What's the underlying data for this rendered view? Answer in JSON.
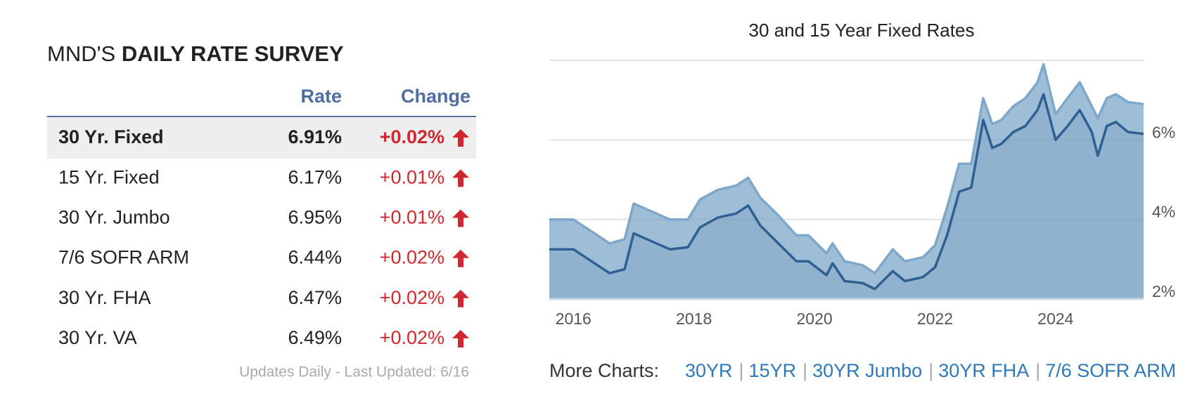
{
  "table": {
    "title": [
      "MND'S",
      "DAILY RATE SURVEY"
    ],
    "columns": [
      "Rate",
      "Change"
    ],
    "rows": [
      [
        "30 Yr. Fixed",
        "6.91%",
        "+0.02%"
      ],
      [
        "15 Yr. Fixed",
        "6.17%",
        "+0.01%"
      ],
      [
        "30 Yr. Jumbo",
        "6.95%",
        "+0.01%"
      ],
      [
        "7/6 SOFR ARM",
        "6.44%",
        "+0.02%"
      ],
      [
        "30 Yr. FHA",
        "6.47%",
        "+0.02%"
      ],
      [
        "30 Yr. VA",
        "6.49%",
        "+0.02%"
      ]
    ],
    "footer": "Updates Daily - Last Updated: 6/16"
  },
  "more_charts": {
    "label": "More Charts:",
    "links": [
      "30YR",
      "15YR",
      "30YR Jumbo",
      "30YR FHA",
      "7/6 SOFR ARM"
    ]
  },
  "chart_data": {
    "type": "area",
    "title": "30 and 15 Year Fixed Rates",
    "x": [
      2015.6,
      2016.0,
      2016.3,
      2016.6,
      2016.85,
      2017.0,
      2017.3,
      2017.6,
      2017.9,
      2018.1,
      2018.4,
      2018.7,
      2018.9,
      2019.1,
      2019.4,
      2019.7,
      2019.9,
      2020.2,
      2020.3,
      2020.5,
      2020.8,
      2021.0,
      2021.3,
      2021.5,
      2021.8,
      2022.0,
      2022.2,
      2022.4,
      2022.6,
      2022.8,
      2022.95,
      2023.1,
      2023.3,
      2023.5,
      2023.7,
      2023.8,
      2024.0,
      2024.2,
      2024.4,
      2024.6,
      2024.7,
      2024.85,
      2025.0,
      2025.2,
      2025.46
    ],
    "series": [
      {
        "color": "#7ea7c9",
        "values": [
          4.0,
          4.0,
          3.7,
          3.4,
          3.5,
          4.4,
          4.2,
          4.0,
          4.0,
          4.5,
          4.75,
          4.85,
          5.05,
          4.55,
          4.1,
          3.6,
          3.6,
          3.15,
          3.4,
          2.95,
          2.85,
          2.65,
          3.25,
          2.95,
          3.05,
          3.35,
          4.3,
          5.4,
          5.4,
          7.05,
          6.4,
          6.5,
          6.85,
          7.05,
          7.45,
          7.9,
          6.65,
          7.05,
          7.45,
          6.85,
          6.55,
          7.05,
          7.15,
          6.95,
          6.9
        ]
      },
      {
        "color": "#2e6092",
        "values": [
          3.25,
          3.25,
          2.95,
          2.65,
          2.75,
          3.65,
          3.45,
          3.25,
          3.3,
          3.8,
          4.05,
          4.15,
          4.35,
          3.85,
          3.4,
          2.95,
          2.95,
          2.6,
          2.9,
          2.45,
          2.4,
          2.25,
          2.7,
          2.45,
          2.55,
          2.8,
          3.6,
          4.7,
          4.8,
          6.5,
          5.8,
          5.9,
          6.2,
          6.35,
          6.75,
          7.15,
          6.0,
          6.35,
          6.75,
          6.2,
          5.6,
          6.35,
          6.45,
          6.2,
          6.15
        ]
      }
    ],
    "xlim": [
      2015.6,
      2025.46
    ],
    "xticks": [
      2016,
      2018,
      2020,
      2022,
      2024
    ],
    "ylim": [
      2,
      8
    ],
    "yticks": [
      {
        "value": 2,
        "label": "2%"
      },
      {
        "value": 4,
        "label": "4%"
      },
      {
        "value": 6,
        "label": "6%"
      }
    ],
    "grid": true
  }
}
